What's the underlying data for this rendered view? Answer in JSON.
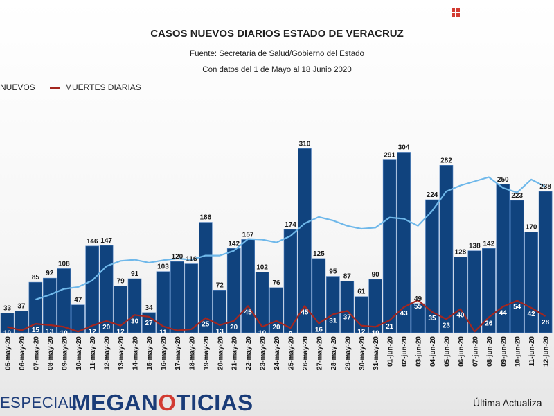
{
  "header": {
    "title": "CASOS NUEVOS DIARIOS ESTADO DE VERACRUZ",
    "source": "Fuente: Secretaría de Salud/Gobierno del Estado",
    "range": "Con datos del 1 de Mayo al 18 Junio 2020"
  },
  "legend": {
    "new_cases": "NUEVOS",
    "deaths": "MUERTES DIARIAS"
  },
  "footer": {
    "especial": "ESPECIAL",
    "brand_prefix": "MEGAN",
    "brand_mark": "O",
    "brand_suffix": "TICIAS",
    "updated": "Última Actualiza"
  },
  "colors": {
    "bars": "#10437e",
    "bar_edge": "#4d7fbf",
    "deaths_line": "#a3261f",
    "average_line": "#6fb8ea",
    "accent": "#d23b32"
  },
  "icons": {
    "corner": "grid-icon"
  },
  "chart_data": {
    "type": "bar",
    "title": "CASOS NUEVOS DIARIOS ESTADO DE VERACRUZ",
    "categories": [
      "05-may-20",
      "06-may-20",
      "07-may-20",
      "08-may-20",
      "09-may-20",
      "10-may-20",
      "11-may-20",
      "12-may-20",
      "13-may-20",
      "14-may-20",
      "15-may-20",
      "16-may-20",
      "17-may-20",
      "18-may-20",
      "19-may-20",
      "20-may-20",
      "21-may-20",
      "22-may-20",
      "23-may-20",
      "24-may-20",
      "25-may-20",
      "26-may-20",
      "27-may-20",
      "28-may-20",
      "29-may-20",
      "30-may-20",
      "31-may-20",
      "01-jun-20",
      "02-jun-20",
      "03-jun-20",
      "04-jun-20",
      "05-jun-20",
      "06-jun-20",
      "07-jun-20",
      "08-jun-20",
      "09-jun-20",
      "10-jun-20",
      "11-jun-20",
      "12-jun-20"
    ],
    "series": [
      {
        "name": "NUEVOS",
        "type": "bar",
        "values": [
          33,
          37,
          85,
          92,
          108,
          47,
          146,
          147,
          79,
          91,
          34,
          103,
          120,
          116,
          186,
          72,
          142,
          157,
          102,
          76,
          174,
          310,
          125,
          95,
          87,
          61,
          90,
          291,
          304,
          49,
          224,
          282,
          128,
          138,
          142,
          250,
          223,
          170,
          238
        ]
      },
      {
        "name": "MUERTES DIARIAS",
        "type": "line",
        "values": [
          10,
          4,
          15,
          13,
          10,
          2,
          12,
          20,
          12,
          30,
          27,
          11,
          4,
          6,
          25,
          13,
          20,
          45,
          10,
          20,
          8,
          45,
          16,
          31,
          37,
          12,
          10,
          21,
          43,
          55,
          35,
          23,
          40,
          2,
          26,
          44,
          54,
          42,
          28
        ]
      },
      {
        "type": "line",
        "values": [
          null,
          null,
          56,
          64,
          74,
          77,
          88,
          112,
          121,
          123,
          118,
          122,
          125,
          123,
          130,
          130,
          138,
          158,
          157,
          152,
          163,
          184,
          195,
          189,
          180,
          175,
          177,
          194,
          192,
          180,
          205,
          238,
          248,
          255,
          262,
          244,
          236,
          258,
          246
        ]
      }
    ],
    "ylim": [
      0,
      330
    ],
    "grid": false
  }
}
